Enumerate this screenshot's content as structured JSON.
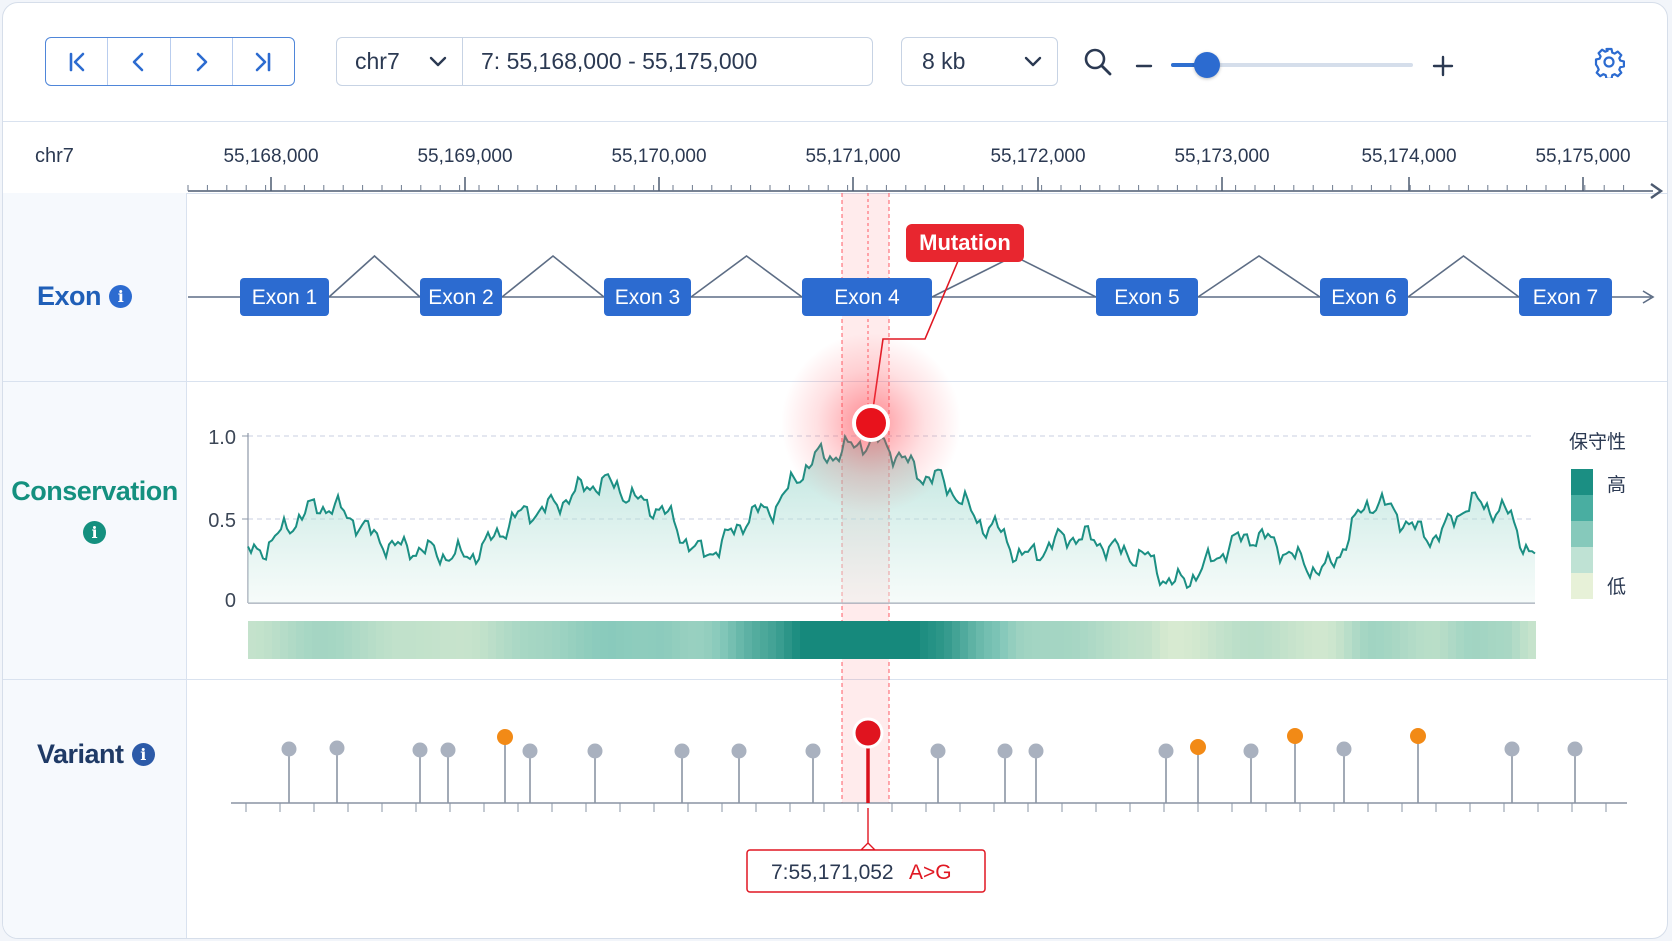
{
  "toolbar": {
    "chrom_select": "chr7",
    "locus": "7: 55,168,000 - 55,175,000",
    "zoom_select": "8 kb",
    "zoom_level": 0.15
  },
  "ruler": {
    "chrom": "chr7",
    "ticks": [
      "55,168,000",
      "55,169,000",
      "55,170,000",
      "55,171,000",
      "55,172,000",
      "55,173,000",
      "55,174,000",
      "55,175,000"
    ]
  },
  "tracks": {
    "exon": {
      "label": "Exon",
      "exons": [
        "Exon 1",
        "Exon 2",
        "Exon 3",
        "Exon 4",
        "Exon 5",
        "Exon 6",
        "Exon 7"
      ],
      "callout": "Mutation"
    },
    "conservation": {
      "label": "Conservation",
      "y_ticks": [
        "1.0",
        "0.5",
        "0"
      ],
      "legend_title": "保守性",
      "legend_high": "高",
      "legend_low": "低",
      "legend_colors": [
        "#1b8f83",
        "#49aea1",
        "#86c9bb",
        "#bfe2d4",
        "#e7f1d8"
      ]
    },
    "variant": {
      "label": "Variant",
      "tooltip_pos": "7:55,171,052",
      "tooltip_change": "A>G",
      "colors": {
        "common": "#a9b1bf",
        "notable": "#f28a16",
        "selected": "#e01722"
      }
    }
  },
  "colors": {
    "accent": "#2c6bd0",
    "mutation": "#e01722",
    "conservation": "#1b8f83"
  }
}
